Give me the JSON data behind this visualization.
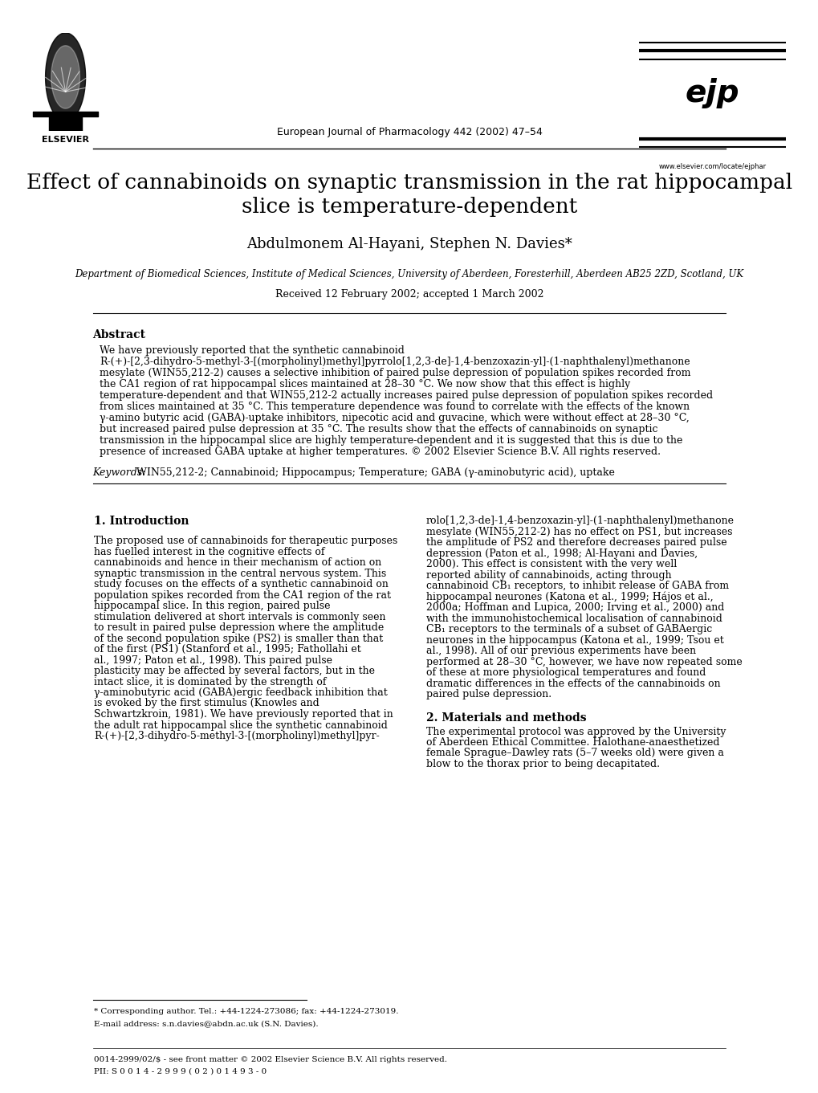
{
  "bg_color": "#ffffff",
  "journal_line": "European Journal of Pharmacology 442 (2002) 47–54",
  "website": "www.elsevier.com/locate/ejphar",
  "title_line1": "Effect of cannabinoids on synaptic transmission in the rat hippocampal",
  "title_line2": "slice is temperature-dependent",
  "authors": "Abdulmonem Al-Hayani, Stephen N. Davies*",
  "affiliation": "Department of Biomedical Sciences, Institute of Medical Sciences, University of Aberdeen, Foresterhill, Aberdeen AB25 2ZD, Scotland, UK",
  "received": "Received 12 February 2002; accepted 1 March 2002",
  "abstract_header": "Abstract",
  "abstract_text": "We have previously reported that the synthetic cannabinoid R-(+)-[2,3-dihydro-5-methyl-3-[(morpholinyl)methyl]pyrrolo[1,2,3-de]-1,4-benzoxazin-yl]-(1-naphthalenyl)methanone mesylate (WIN55,212-2) causes a selective inhibition of paired pulse depression of population spikes recorded from the CA1 region of rat hippocampal slices maintained at 28–30 °C. We now show that this effect is highly temperature-dependent and that WIN55,212-2 actually increases paired pulse depression of population spikes recorded from slices maintained at 35 °C. This temperature dependence was found to correlate with the effects of the known γ-amino butyric acid (GABA)-uptake inhibitors, nipecotic acid and guvacine, which were without effect at 28–30 °C, but increased paired pulse depression at 35 °C. The results show that the effects of cannabinoids on synaptic transmission in the hippocampal slice are highly temperature-dependent and it is suggested that this is due to the presence of increased GABA uptake at higher temperatures. © 2002 Elsevier Science B.V. All rights reserved.",
  "keywords_label": "Keywords:",
  "keywords_text": "WIN55,212-2; Cannabinoid; Hippocampus; Temperature; GABA (γ-aminobutyric acid), uptake",
  "section1_header": "1. Introduction",
  "section1_col1": "The proposed use of cannabinoids for therapeutic purposes has fuelled interest in the cognitive effects of cannabinoids and hence in their mechanism of action on synaptic transmission in the central nervous system. This study focuses on the effects of a synthetic cannabinoid on population spikes recorded from the CA1 region of the rat hippocampal slice. In this region, paired pulse stimulation delivered at short intervals is commonly seen to result in paired pulse depression where the amplitude of the second population spike (PS2) is smaller than that of the first (PS1) (Stanford et al., 1995; Fathollahi et al., 1997; Paton et al., 1998). This paired pulse plasticity may be affected by several factors, but in the intact slice, it is dominated by the strength of γ-aminobutyric acid (GABA)ergic feedback inhibition that is evoked by the first stimulus (Knowles and Schwartzkroin, 1981). We have previously reported that in the adult rat hippocampal slice the synthetic cannabinoid R-(+)-[2,3-dihydro-5-methyl-3-[(morpholinyl)methyl]pyr-",
  "section1_col2": "rolo[1,2,3-de]-1,4-benzoxazin-yl]-(1-naphthalenyl)methanone mesylate (WIN55,212-2) has no effect on PS1, but increases the amplitude of PS2 and therefore decreases paired pulse depression (Paton et al., 1998; Al-Hayani and Davies, 2000). This effect is consistent with the very well reported ability of cannabinoids, acting through cannabinoid CB₁ receptors, to inhibit release of GABA from hippocampal neurones (Katona et al., 1999; Hájos et al., 2000a; Hoffman and Lupica, 2000; Irving et al., 2000) and with the immunohistochemical localisation of cannabinoid CB₁ receptors to the terminals of a subset of GABAergic neurones in the hippocampus (Katona et al., 1999; Tsou et al., 1998). All of our previous experiments have been performed at 28–30 °C, however, we have now repeated some of these at more physiological temperatures and found dramatic differences in the effects of the cannabinoids on paired pulse depression.",
  "section2_header": "2. Materials and methods",
  "section2_text": "The experimental protocol was approved by the University of Aberdeen Ethical Committee. Halothane-anaesthetized female Sprague–Dawley rats (5–7 weeks old) were given a blow to the thorax prior to being decapitated.",
  "footnote_star": "* Corresponding author. Tel.: +44-1224-273086; fax: +44-1224-273019.",
  "footnote_email": "E-mail address: s.n.davies@abdn.ac.uk (S.N. Davies).",
  "footer_line1": "0014-2999/02/$ - see front matter © 2002 Elsevier Science B.V. All rights reserved.",
  "footer_line2": "PII: S 0 0 1 4 - 2 9 9 9 ( 0 2 ) 0 1 4 9 3 - 0"
}
